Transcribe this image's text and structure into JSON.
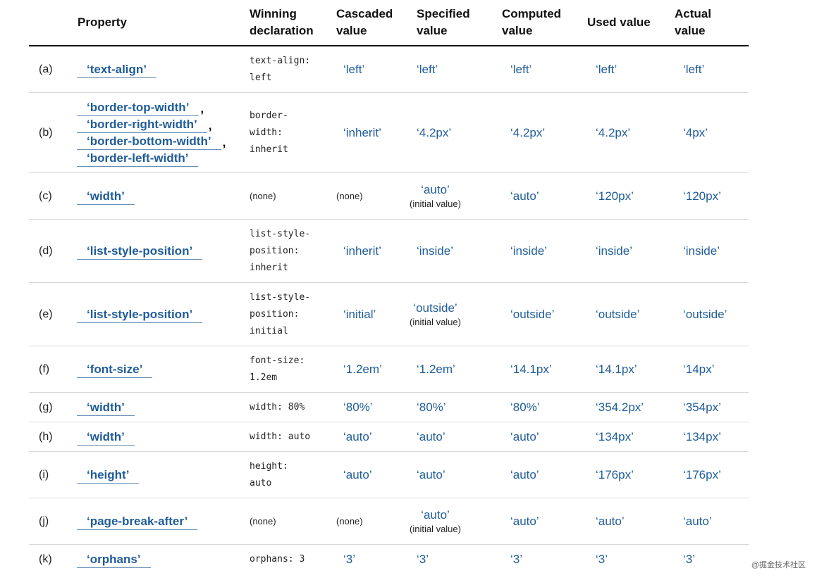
{
  "headers": {
    "property": "Property",
    "winning": "Winning\ndeclaration",
    "cascaded": "Cascaded\nvalue",
    "specified": "Specified\nvalue",
    "computed": "Computed\nvalue",
    "used": "Used value",
    "actual": "Actual\nvalue"
  },
  "rows": [
    {
      "label": "(a)",
      "properties": [
        "‘text-align’"
      ],
      "winning": "text-align:\nleft",
      "cascaded": "‘left’",
      "specified": "‘left’",
      "specified_note": "",
      "computed": "‘left’",
      "used": "‘left’",
      "actual": "‘left’"
    },
    {
      "label": "(b)",
      "properties": [
        "‘border-top-width’",
        "‘border-right-width’",
        "‘border-bottom-width’",
        "‘border-left-width’"
      ],
      "winning": "border-\nwidth:\ninherit",
      "cascaded": "‘inherit’",
      "specified": "‘4.2px’",
      "specified_note": "",
      "computed": "‘4.2px’",
      "used": "‘4.2px’",
      "actual": "‘4px’"
    },
    {
      "label": "(c)",
      "properties": [
        "‘width’"
      ],
      "winning": "(none)",
      "cascaded": "(none)",
      "specified": "‘auto’",
      "specified_note": "(initial value)",
      "computed": "‘auto’",
      "used": "‘120px’",
      "actual": "‘120px’"
    },
    {
      "label": "(d)",
      "properties": [
        "‘list-style-position’"
      ],
      "winning": "list-style-\nposition:\ninherit",
      "cascaded": "‘inherit’",
      "specified": "‘inside’",
      "specified_note": "",
      "computed": "‘inside’",
      "used": "‘inside’",
      "actual": "‘inside’"
    },
    {
      "label": "(e)",
      "properties": [
        "‘list-style-position’"
      ],
      "winning": "list-style-\nposition:\ninitial",
      "cascaded": "‘initial’",
      "specified": "‘outside’",
      "specified_note": "(initial value)",
      "computed": "‘outside’",
      "used": "‘outside’",
      "actual": "‘outside’"
    },
    {
      "label": "(f)",
      "properties": [
        "‘font-size’"
      ],
      "winning": "font-size:\n1.2em",
      "cascaded": "‘1.2em’",
      "specified": "‘1.2em’",
      "specified_note": "",
      "computed": "‘14.1px’",
      "used": "‘14.1px’",
      "actual": "‘14px’"
    },
    {
      "label": "(g)",
      "properties": [
        "‘width’"
      ],
      "winning": "width: 80%",
      "cascaded": "‘80%’",
      "specified": "‘80%’",
      "specified_note": "",
      "computed": "‘80%’",
      "used": "‘354.2px’",
      "actual": "‘354px’"
    },
    {
      "label": "(h)",
      "properties": [
        "‘width’"
      ],
      "winning": "width: auto",
      "cascaded": "‘auto’",
      "specified": "‘auto’",
      "specified_note": "",
      "computed": "‘auto’",
      "used": "‘134px’",
      "actual": "‘134px’"
    },
    {
      "label": "(i)",
      "properties": [
        "‘height’"
      ],
      "winning": "height:\nauto",
      "cascaded": "‘auto’",
      "specified": "‘auto’",
      "specified_note": "",
      "computed": "‘auto’",
      "used": "‘176px’",
      "actual": "‘176px’"
    },
    {
      "label": "(j)",
      "properties": [
        "‘page-break-after’"
      ],
      "winning": "(none)",
      "cascaded": "(none)",
      "specified": "‘auto’",
      "specified_note": "(initial value)",
      "computed": "‘auto’",
      "used": "‘auto’",
      "actual": "‘auto’"
    },
    {
      "label": "(k)",
      "properties": [
        "‘orphans’"
      ],
      "winning": "orphans: 3",
      "cascaded": "‘3’",
      "specified": "‘3’",
      "specified_note": "",
      "computed": "‘3’",
      "used": "‘3’",
      "actual": "‘3’"
    }
  ],
  "watermark": "@掘金技术社区"
}
